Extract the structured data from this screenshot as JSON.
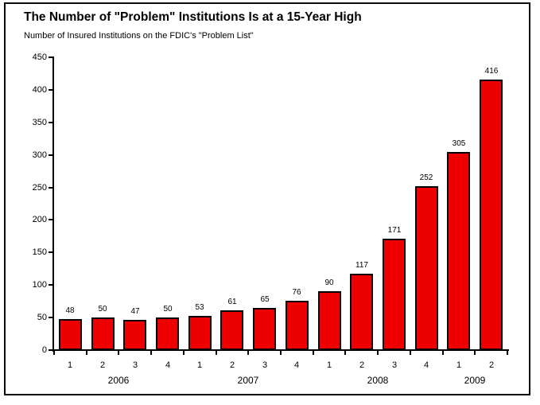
{
  "window": {
    "background_color": "#ffffff",
    "frame_border_color": "#0a0a0a"
  },
  "chart_data": {
    "type": "bar",
    "title": "The Number of \"Problem\" Institutions Is at a 15-Year High",
    "subtitle": "Number of Insured Institutions on the FDIC's \"Problem List\"",
    "categories": [
      "1",
      "2",
      "3",
      "4",
      "1",
      "2",
      "3",
      "4",
      "1",
      "2",
      "3",
      "4",
      "1",
      "2"
    ],
    "year_groups": [
      {
        "label": "2006",
        "span": 4
      },
      {
        "label": "2007",
        "span": 4
      },
      {
        "label": "2008",
        "span": 4
      },
      {
        "label": "2009",
        "span": 2
      }
    ],
    "values": [
      48,
      50,
      47,
      50,
      53,
      61,
      65,
      76,
      90,
      117,
      171,
      252,
      305,
      416
    ],
    "show_data_labels": true,
    "xlabel": "",
    "ylabel": "",
    "ylim": [
      0,
      450
    ],
    "yticks": [
      0,
      50,
      100,
      150,
      200,
      250,
      300,
      350,
      400,
      450
    ],
    "grid": false,
    "legend": "none",
    "bar_color": "#ee0000",
    "bar_border_color": "#000000",
    "axis_color": "#000000",
    "label_color": "#000000"
  }
}
